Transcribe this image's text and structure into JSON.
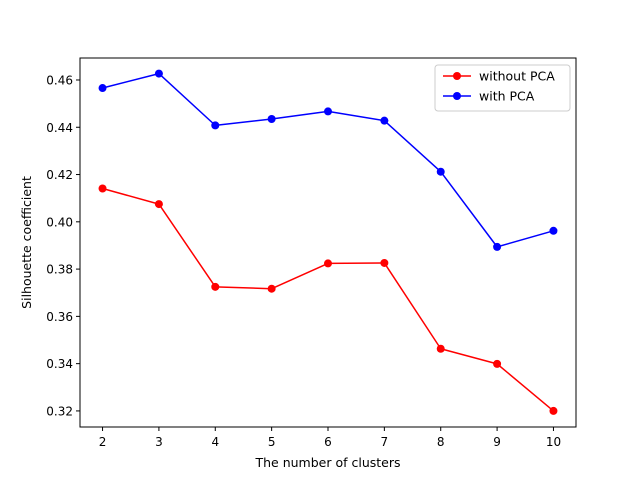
{
  "chart_data": {
    "type": "line",
    "title": "",
    "xlabel": "The number of clusters",
    "ylabel": "Silhouette coefficient",
    "x": [
      2,
      3,
      4,
      5,
      6,
      7,
      8,
      9,
      10
    ],
    "xlim": [
      1.6,
      10.4
    ],
    "ylim": [
      0.3132,
      0.4693
    ],
    "xticks": [
      2,
      3,
      4,
      5,
      6,
      7,
      8,
      9,
      10
    ],
    "yticks": [
      0.32,
      0.34,
      0.36,
      0.38,
      0.4,
      0.42,
      0.44,
      0.46
    ],
    "ytick_labels": [
      "0.32",
      "0.34",
      "0.36",
      "0.38",
      "0.40",
      "0.42",
      "0.44",
      "0.46"
    ],
    "grid": false,
    "legend_position": "top-right",
    "series": [
      {
        "name": "without PCA",
        "color": "#ff0000",
        "marker": "circle",
        "values": [
          0.4141,
          0.4075,
          0.3725,
          0.3717,
          0.3824,
          0.3826,
          0.3463,
          0.3399,
          0.32
        ]
      },
      {
        "name": "with PCA",
        "color": "#0000ff",
        "marker": "circle",
        "values": [
          0.4566,
          0.4627,
          0.4408,
          0.4435,
          0.4467,
          0.4428,
          0.4212,
          0.3894,
          0.3962
        ]
      }
    ]
  }
}
